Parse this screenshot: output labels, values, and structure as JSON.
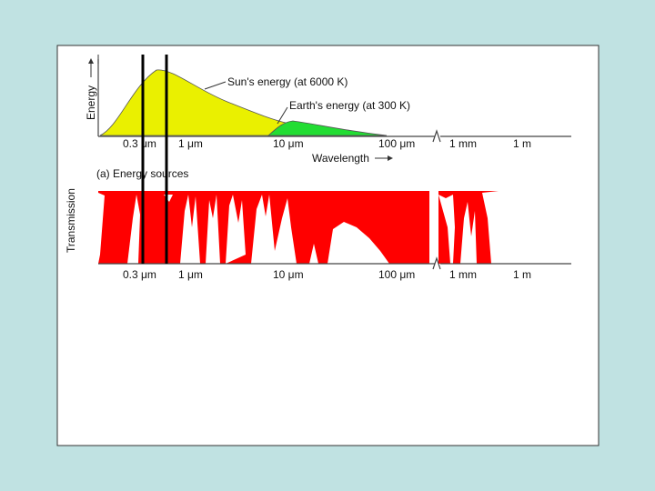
{
  "energy_panel": {
    "y_axis_label": "Energy",
    "sun_label": "Sun's energy (at 6000 K)",
    "earth_label": "Earth's energy (at 300 K)",
    "x_axis_title": "Wavelength",
    "caption": "(a) Energy sources"
  },
  "transmission_panel": {
    "y_axis_label": "Transmission"
  },
  "wavelength_ticks": [
    "0.3 μm",
    "1 μm",
    "10 μm",
    "100 μm",
    "1 mm",
    "1 m"
  ]
}
